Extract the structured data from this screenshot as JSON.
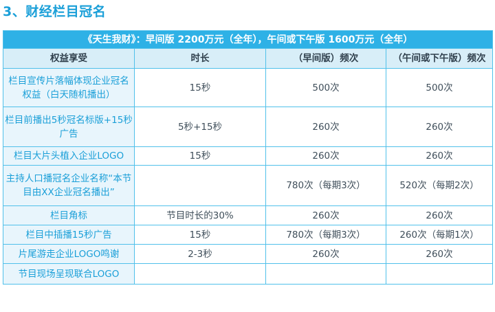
{
  "section_title": "3、财经栏目冠名",
  "table": {
    "banner": "《天生我财》：早间版 2200万元（全年），午间或下午版 1600万元（全年）",
    "headers": [
      "权益享受",
      "时长",
      "（早间版）频次",
      "（午间或下午版）频次"
    ],
    "rows": [
      {
        "benefit": "栏目宣传片落幅体现企业冠名权益（白天随机播出）",
        "duration": "15秒",
        "morning": "500次",
        "afternoon": "500次"
      },
      {
        "benefit": "栏目前播出5秒冠名标版+15秒广告",
        "duration": "5秒+15秒",
        "morning": "260次",
        "afternoon": "260次"
      },
      {
        "benefit": "栏目大片头植入企业LOGO",
        "duration": "15秒",
        "morning": "260次",
        "afternoon": "260次"
      },
      {
        "benefit": "主持人口播冠名企业名称“本节目由XX企业冠名播出”",
        "duration": "",
        "morning": "780次（每期3次）",
        "afternoon": "520次（每期2次）"
      },
      {
        "benefit": "栏目角标",
        "duration": "节目时长的30%",
        "morning": "260次",
        "afternoon": "260次"
      },
      {
        "benefit": "栏目中插播15秒广告",
        "duration": "15秒",
        "morning": "780次（每期3次）",
        "afternoon": "260次（每期1次）"
      },
      {
        "benefit": "片尾游走企业LOGO鸣谢",
        "duration": "2-3秒",
        "morning": "260次",
        "afternoon": "260次"
      },
      {
        "benefit": "节目现场呈现联合LOGO",
        "duration": "",
        "morning": "",
        "afternoon": ""
      }
    ]
  }
}
